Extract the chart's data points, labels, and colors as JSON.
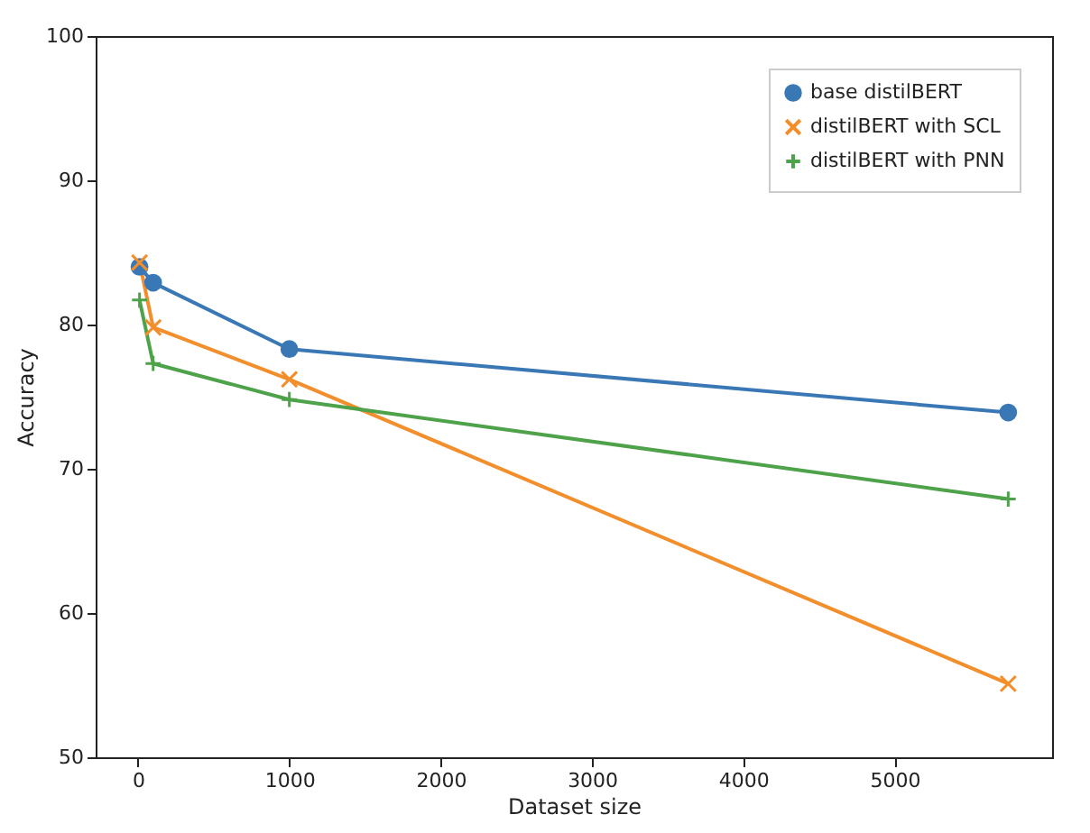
{
  "chart_data": {
    "type": "line",
    "xlabel": "Dataset size",
    "ylabel": "Accuracy",
    "x": [
      10,
      100,
      1000,
      5750
    ],
    "series": [
      {
        "name": "base distilBERT",
        "color": "#3a78b5",
        "values": [
          84.0,
          82.9,
          78.3,
          73.9
        ],
        "marker": "circle"
      },
      {
        "name": "distilBERT with SCL",
        "color": "#f28e2b",
        "values": [
          84.3,
          79.8,
          76.2,
          55.1
        ],
        "marker": "cross"
      },
      {
        "name": "distilBERT with PNN",
        "color": "#4ea24a",
        "values": [
          81.7,
          77.3,
          74.8,
          67.9
        ],
        "marker": "plus"
      }
    ],
    "xlim": [
      -280,
      6040
    ],
    "xticks": [
      0,
      1000,
      2000,
      3000,
      4000,
      5000
    ],
    "ylim": [
      50,
      100
    ],
    "yticks": [
      50,
      60,
      70,
      80,
      90,
      100
    ],
    "legend": "top right",
    "grid": false,
    "line_style": "solid"
  }
}
